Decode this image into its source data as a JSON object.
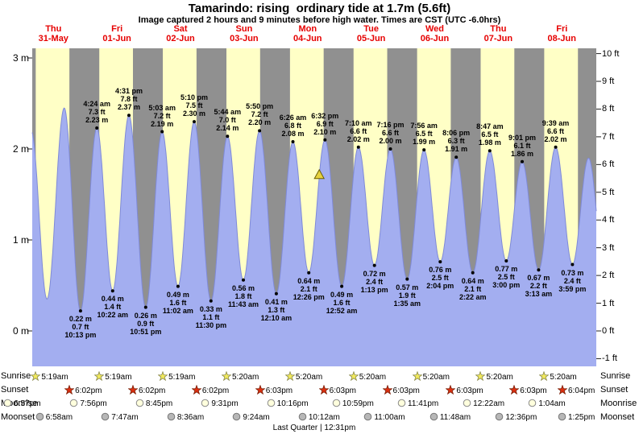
{
  "title": "Tamarindo: rising  ordinary tide at 1.7m (5.6ft)",
  "subtitle": "Image captured 2 hours and 9 minutes before high water. Times are CST (UTC -6.0hrs)",
  "chart_data": {
    "type": "area",
    "title": "Tamarindo: rising  ordinary tide at 1.7m (5.6ft)",
    "x_unit": "hours from Thu 31-May 00:00 (CST)",
    "y_unit": "m",
    "x_range": [
      4,
      217
    ],
    "y_range_m": [
      -0.39,
      3.1
    ],
    "day_labels": [
      {
        "weekday": "Thu",
        "date": "31-May"
      },
      {
        "weekday": "Fri",
        "date": "01-Jun"
      },
      {
        "weekday": "Sat",
        "date": "02-Jun"
      },
      {
        "weekday": "Sun",
        "date": "03-Jun"
      },
      {
        "weekday": "Mon",
        "date": "04-Jun"
      },
      {
        "weekday": "Tue",
        "date": "05-Jun"
      },
      {
        "weekday": "Wed",
        "date": "06-Jun"
      },
      {
        "weekday": "Thu",
        "date": "07-Jun"
      },
      {
        "weekday": "Fri",
        "date": "08-Jun"
      }
    ],
    "y_axis_left": {
      "unit": "m",
      "ticks": [
        {
          "label": "3 m",
          "value": 3
        },
        {
          "label": "2 m",
          "value": 2
        },
        {
          "label": "1 m",
          "value": 1
        },
        {
          "label": "0 m",
          "value": 0
        }
      ]
    },
    "y_axis_right": {
      "unit": "ft",
      "ticks": [
        {
          "label": "10 ft",
          "value": 10
        },
        {
          "label": "9 ft",
          "value": 9
        },
        {
          "label": "8 ft",
          "value": 8
        },
        {
          "label": "7 ft",
          "value": 7
        },
        {
          "label": "6 ft",
          "value": 6
        },
        {
          "label": "5 ft",
          "value": 5
        },
        {
          "label": "4 ft",
          "value": 4
        },
        {
          "label": "3 ft",
          "value": 3
        },
        {
          "label": "2 ft",
          "value": 2
        },
        {
          "label": "1 ft",
          "value": 1
        },
        {
          "label": "0 ft",
          "value": 0
        },
        {
          "label": "-1 ft",
          "value": -1
        }
      ]
    },
    "tide_events": [
      {
        "t": 22.22,
        "h": 0.22,
        "type": "low",
        "lines": [
          "0.22 m",
          "0.7 ft",
          "10:13 pm"
        ]
      },
      {
        "t": 28.4,
        "h": 2.23,
        "type": "high",
        "lines": [
          "4:24 am",
          "7.3 ft",
          "2.23 m"
        ]
      },
      {
        "t": 34.367,
        "h": 0.44,
        "type": "low",
        "lines": [
          "0.44 m",
          "1.4 ft",
          "10:22 am"
        ]
      },
      {
        "t": 40.517,
        "h": 2.37,
        "type": "high",
        "lines": [
          "4:31 pm",
          "7.8 ft",
          "2.37 m"
        ]
      },
      {
        "t": 46.85,
        "h": 0.26,
        "type": "low",
        "lines": [
          "0.26 m",
          "0.9 ft",
          "10:51 pm"
        ]
      },
      {
        "t": 53.05,
        "h": 2.19,
        "type": "high",
        "lines": [
          "5:03 am",
          "7.2 ft",
          "2.19 m"
        ]
      },
      {
        "t": 59.033,
        "h": 0.49,
        "type": "low",
        "lines": [
          "0.49 m",
          "1.6 ft",
          "11:02 am"
        ]
      },
      {
        "t": 65.167,
        "h": 2.3,
        "type": "high",
        "lines": [
          "5:10 pm",
          "7.5 ft",
          "2.30 m"
        ]
      },
      {
        "t": 71.5,
        "h": 0.33,
        "type": "low",
        "lines": [
          "0.33 m",
          "1.1 ft",
          "11:30 pm"
        ]
      },
      {
        "t": 77.733,
        "h": 2.14,
        "type": "high",
        "lines": [
          "5:44 am",
          "7.0 ft",
          "2.14 m"
        ]
      },
      {
        "t": 83.717,
        "h": 0.56,
        "type": "low",
        "lines": [
          "0.56 m",
          "1.8 ft",
          "11:43 am"
        ]
      },
      {
        "t": 89.833,
        "h": 2.2,
        "type": "high",
        "lines": [
          "5:50 pm",
          "7.2 ft",
          "2.20 m"
        ]
      },
      {
        "t": 96.167,
        "h": 0.41,
        "type": "low",
        "lines": [
          "0.41 m",
          "1.3 ft",
          "12:10 am"
        ]
      },
      {
        "t": 102.433,
        "h": 2.08,
        "type": "high",
        "lines": [
          "6:26 am",
          "6.8 ft",
          "2.08 m"
        ]
      },
      {
        "t": 108.433,
        "h": 0.64,
        "type": "low",
        "lines": [
          "0.64 m",
          "2.1 ft",
          "12:26 pm"
        ]
      },
      {
        "t": 114.533,
        "h": 2.1,
        "type": "high",
        "lines": [
          "6:32 pm",
          "6.9 ft",
          "2.10 m"
        ]
      },
      {
        "t": 120.867,
        "h": 0.49,
        "type": "low",
        "lines": [
          "0.49 m",
          "1.6 ft",
          "12:52 am"
        ]
      },
      {
        "t": 127.167,
        "h": 2.02,
        "type": "high",
        "lines": [
          "7:10 am",
          "6.6 ft",
          "2.02 m"
        ]
      },
      {
        "t": 133.217,
        "h": 0.72,
        "type": "low",
        "lines": [
          "0.72 m",
          "2.4 ft",
          "1:13 pm"
        ]
      },
      {
        "t": 139.267,
        "h": 2.0,
        "type": "high",
        "lines": [
          "7:16 pm",
          "6.6 ft",
          "2.00 m"
        ]
      },
      {
        "t": 145.583,
        "h": 0.57,
        "type": "low",
        "lines": [
          "0.57 m",
          "1.9 ft",
          "1:35 am"
        ]
      },
      {
        "t": 151.933,
        "h": 1.99,
        "type": "high",
        "lines": [
          "7:56 am",
          "6.5 ft",
          "1.99 m"
        ]
      },
      {
        "t": 158.067,
        "h": 0.76,
        "type": "low",
        "lines": [
          "0.76 m",
          "2.5 ft",
          "2:04 pm"
        ]
      },
      {
        "t": 164.1,
        "h": 1.91,
        "type": "high",
        "lines": [
          "8:06 pm",
          "6.3 ft",
          "1.91 m"
        ]
      },
      {
        "t": 170.367,
        "h": 0.64,
        "type": "low",
        "lines": [
          "0.64 m",
          "2.1 ft",
          "2:22 am"
        ]
      },
      {
        "t": 176.783,
        "h": 1.98,
        "type": "high",
        "lines": [
          "8:47 am",
          "6.5 ft",
          "1.98 m"
        ]
      },
      {
        "t": 183.0,
        "h": 0.77,
        "type": "low",
        "lines": [
          "0.77 m",
          "2.5 ft",
          "3:00 pm"
        ]
      },
      {
        "t": 189.017,
        "h": 1.86,
        "type": "high",
        "lines": [
          "9:01 pm",
          "6.1 ft",
          "1.86 m"
        ]
      },
      {
        "t": 195.217,
        "h": 0.67,
        "type": "low",
        "lines": [
          "0.67 m",
          "2.2 ft",
          "3:13 am"
        ]
      },
      {
        "t": 201.65,
        "h": 2.02,
        "type": "high",
        "lines": [
          "9:39 am",
          "6.6 ft",
          "2.02 m"
        ]
      },
      {
        "t": 207.983,
        "h": 0.73,
        "type": "low",
        "lines": [
          "0.73 m",
          "2.4 ft",
          "3:59 pm"
        ]
      }
    ],
    "unlabeled_extremes": [
      {
        "t": -2.83,
        "h": 0.2
      },
      {
        "t": 3.62,
        "h": 2.2
      },
      {
        "t": 9.58,
        "h": 0.35
      },
      {
        "t": 16.08,
        "h": 2.45
      },
      {
        "t": 214.08,
        "h": 1.9
      },
      {
        "t": 220.33,
        "h": 0.6
      }
    ],
    "current_marker": {
      "t": 112.38,
      "h": 1.71
    },
    "colors": {
      "day_band": "#ffffc6",
      "night_band": "#909090",
      "tide_fill": "#a3aef0",
      "tide_stroke": "#7f8ad8",
      "day_label_red": "#e60000",
      "marker_fill": "#e6d13f",
      "marker_stroke": "#6b5e00"
    }
  },
  "astro": {
    "row_labels_left": [
      "Sunrise",
      "Sunset",
      "Moonrise",
      "Moonset"
    ],
    "row_labels_right": [
      "Sunrise",
      "Sunset",
      "Moonrise",
      "Moonset"
    ],
    "rows": {
      "sunrise": {
        "entries": [
          {
            "t": 5.317,
            "time": "5:19am"
          },
          {
            "t": 29.317,
            "time": "5:19am"
          },
          {
            "t": 53.317,
            "time": "5:19am"
          },
          {
            "t": 77.333,
            "time": "5:20am"
          },
          {
            "t": 101.333,
            "time": "5:20am"
          },
          {
            "t": 125.333,
            "time": "5:20am"
          },
          {
            "t": 149.333,
            "time": "5:20am"
          },
          {
            "t": 173.333,
            "time": "5:20am"
          },
          {
            "t": 197.333,
            "time": "5:20am"
          }
        ]
      },
      "sunset": {
        "entries": [
          {
            "t": 18.033,
            "time": "6:02pm"
          },
          {
            "t": 42.033,
            "time": "6:02pm"
          },
          {
            "t": 66.033,
            "time": "6:02pm"
          },
          {
            "t": 90.05,
            "time": "6:03pm"
          },
          {
            "t": 114.05,
            "time": "6:03pm"
          },
          {
            "t": 138.05,
            "time": "6:03pm"
          },
          {
            "t": 162.05,
            "time": "6:03pm"
          },
          {
            "t": 186.05,
            "time": "6:03pm"
          },
          {
            "t": 210.067,
            "time": "6:04pm"
          }
        ]
      },
      "moonrise": {
        "entries": [
          {
            "t": -5.05,
            "time": "6:57pm"
          },
          {
            "t": 19.933,
            "time": "7:56pm"
          },
          {
            "t": 44.75,
            "time": "8:45pm"
          },
          {
            "t": 69.517,
            "time": "9:31pm"
          },
          {
            "t": 94.267,
            "time": "10:16pm"
          },
          {
            "t": 118.983,
            "time": "10:59pm"
          },
          {
            "t": 143.683,
            "time": "11:41pm"
          },
          {
            "t": 168.367,
            "time": "12:22am"
          },
          {
            "t": 193.067,
            "time": "1:04am"
          }
        ]
      },
      "moonset": {
        "entries": [
          {
            "t": 6.967,
            "time": "6:58am"
          },
          {
            "t": 31.783,
            "time": "7:47am"
          },
          {
            "t": 56.6,
            "time": "8:36am"
          },
          {
            "t": 81.4,
            "time": "9:24am"
          },
          {
            "t": 106.2,
            "time": "10:12am"
          },
          {
            "t": 131.0,
            "time": "11:00am"
          },
          {
            "t": 155.8,
            "time": "11:48am"
          },
          {
            "t": 180.6,
            "time": "12:36pm"
          },
          {
            "t": 205.417,
            "time": "1:25pm"
          }
        ]
      }
    },
    "icons": {
      "sunrise": {
        "shape": "star",
        "fill": "#f2ea5c",
        "stroke": "#88884a"
      },
      "sunset": {
        "shape": "star",
        "fill": "#dd2f10",
        "stroke": "#7a1d05"
      },
      "moonrise": {
        "shape": "circle",
        "fill": "#ffffdd",
        "stroke": "#8a8a8a"
      },
      "moonset": {
        "shape": "circle",
        "fill": "#b7b7b7",
        "stroke": "#777777"
      }
    },
    "moon_phase": "Last Quarter | 12:31pm"
  }
}
